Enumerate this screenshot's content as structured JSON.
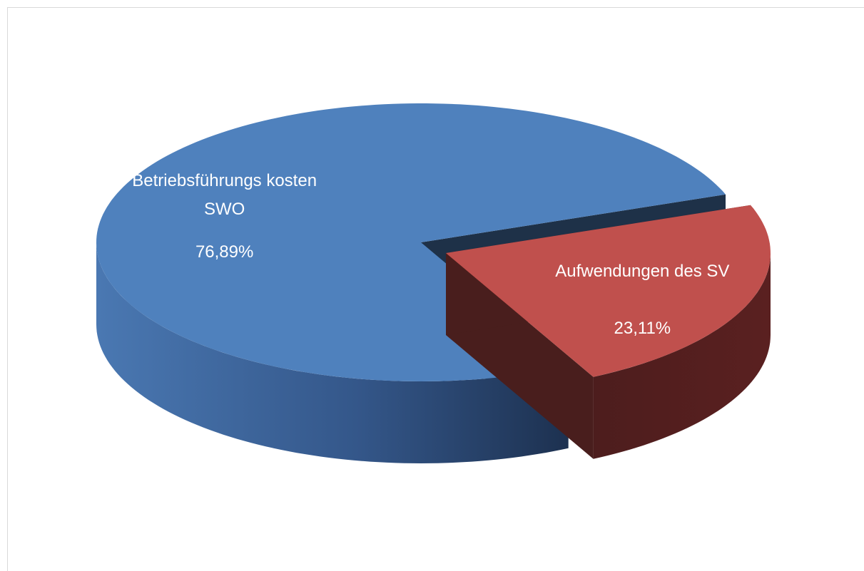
{
  "chart_data": {
    "type": "pie",
    "categories": [
      "Betriebsführungs kosten SWO",
      "Aufwendungen des SV"
    ],
    "values": [
      76.89,
      23.11
    ],
    "value_labels": [
      "76,89%",
      "23,11%"
    ],
    "colors": [
      "#4f81bd",
      "#c0504d"
    ]
  }
}
